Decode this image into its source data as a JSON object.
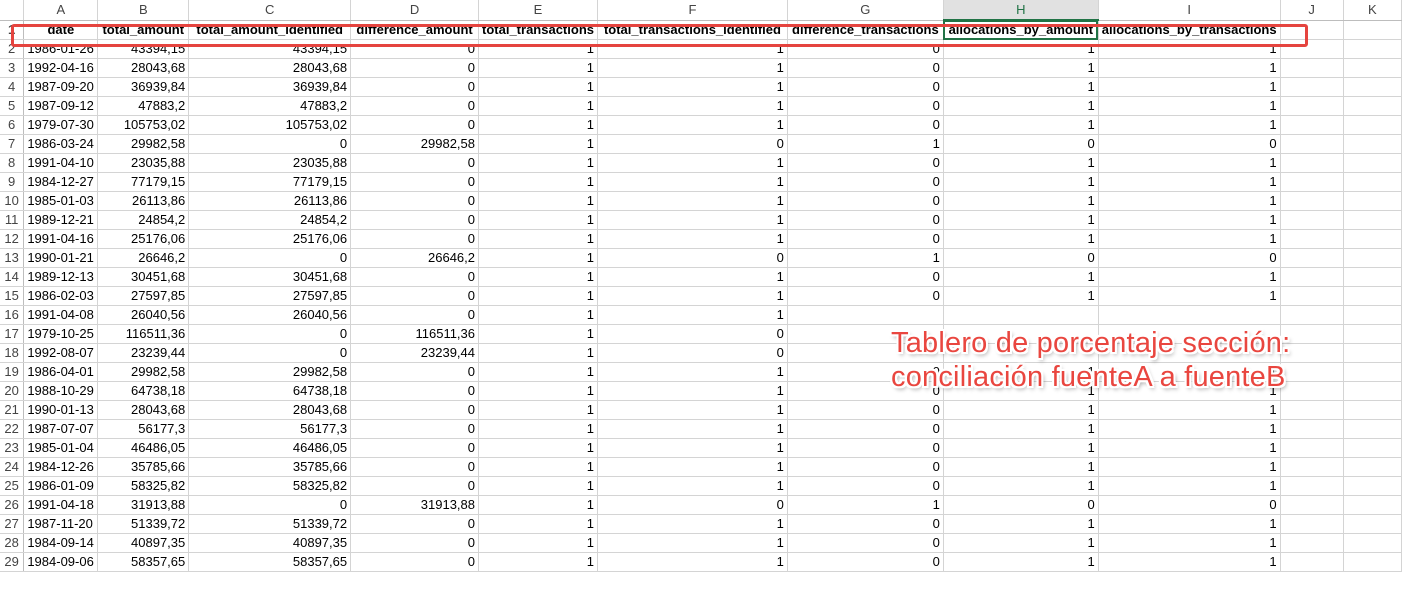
{
  "columns": [
    "A",
    "B",
    "C",
    "D",
    "E",
    "F",
    "G",
    "H",
    "I",
    "J",
    "K"
  ],
  "selected_column": "H",
  "header_row": {
    "row_number": "1",
    "cells": [
      "date",
      "total_amount",
      "total_amount_identified",
      "difference_amount",
      "total_transactions",
      "total_transactions_identified",
      "difference_transactions",
      "allocations_by_amount",
      "allocations_by_transactions"
    ]
  },
  "rows": [
    {
      "n": "2",
      "c": [
        "1986-01-26",
        "43394,15",
        "43394,15",
        "0",
        "1",
        "1",
        "0",
        "1",
        "1"
      ]
    },
    {
      "n": "3",
      "c": [
        "1992-04-16",
        "28043,68",
        "28043,68",
        "0",
        "1",
        "1",
        "0",
        "1",
        "1"
      ]
    },
    {
      "n": "4",
      "c": [
        "1987-09-20",
        "36939,84",
        "36939,84",
        "0",
        "1",
        "1",
        "0",
        "1",
        "1"
      ]
    },
    {
      "n": "5",
      "c": [
        "1987-09-12",
        "47883,2",
        "47883,2",
        "0",
        "1",
        "1",
        "0",
        "1",
        "1"
      ]
    },
    {
      "n": "6",
      "c": [
        "1979-07-30",
        "105753,02",
        "105753,02",
        "0",
        "1",
        "1",
        "0",
        "1",
        "1"
      ]
    },
    {
      "n": "7",
      "c": [
        "1986-03-24",
        "29982,58",
        "0",
        "29982,58",
        "1",
        "0",
        "1",
        "0",
        "0"
      ]
    },
    {
      "n": "8",
      "c": [
        "1991-04-10",
        "23035,88",
        "23035,88",
        "0",
        "1",
        "1",
        "0",
        "1",
        "1"
      ]
    },
    {
      "n": "9",
      "c": [
        "1984-12-27",
        "77179,15",
        "77179,15",
        "0",
        "1",
        "1",
        "0",
        "1",
        "1"
      ]
    },
    {
      "n": "10",
      "c": [
        "1985-01-03",
        "26113,86",
        "26113,86",
        "0",
        "1",
        "1",
        "0",
        "1",
        "1"
      ]
    },
    {
      "n": "11",
      "c": [
        "1989-12-21",
        "24854,2",
        "24854,2",
        "0",
        "1",
        "1",
        "0",
        "1",
        "1"
      ]
    },
    {
      "n": "12",
      "c": [
        "1991-04-16",
        "25176,06",
        "25176,06",
        "0",
        "1",
        "1",
        "0",
        "1",
        "1"
      ]
    },
    {
      "n": "13",
      "c": [
        "1990-01-21",
        "26646,2",
        "0",
        "26646,2",
        "1",
        "0",
        "1",
        "0",
        "0"
      ]
    },
    {
      "n": "14",
      "c": [
        "1989-12-13",
        "30451,68",
        "30451,68",
        "0",
        "1",
        "1",
        "0",
        "1",
        "1"
      ]
    },
    {
      "n": "15",
      "c": [
        "1986-02-03",
        "27597,85",
        "27597,85",
        "0",
        "1",
        "1",
        "0",
        "1",
        "1"
      ]
    },
    {
      "n": "16",
      "c": [
        "1991-04-08",
        "26040,56",
        "26040,56",
        "0",
        "1",
        "1",
        "",
        "",
        ""
      ]
    },
    {
      "n": "17",
      "c": [
        "1979-10-25",
        "116511,36",
        "0",
        "116511,36",
        "1",
        "0",
        "",
        "",
        ""
      ]
    },
    {
      "n": "18",
      "c": [
        "1992-08-07",
        "23239,44",
        "0",
        "23239,44",
        "1",
        "0",
        "",
        "",
        ""
      ]
    },
    {
      "n": "19",
      "c": [
        "1986-04-01",
        "29982,58",
        "29982,58",
        "0",
        "1",
        "1",
        "0",
        "1",
        "1"
      ]
    },
    {
      "n": "20",
      "c": [
        "1988-10-29",
        "64738,18",
        "64738,18",
        "0",
        "1",
        "1",
        "0",
        "1",
        "1"
      ]
    },
    {
      "n": "21",
      "c": [
        "1990-01-13",
        "28043,68",
        "28043,68",
        "0",
        "1",
        "1",
        "0",
        "1",
        "1"
      ]
    },
    {
      "n": "22",
      "c": [
        "1987-07-07",
        "56177,3",
        "56177,3",
        "0",
        "1",
        "1",
        "0",
        "1",
        "1"
      ]
    },
    {
      "n": "23",
      "c": [
        "1985-01-04",
        "46486,05",
        "46486,05",
        "0",
        "1",
        "1",
        "0",
        "1",
        "1"
      ]
    },
    {
      "n": "24",
      "c": [
        "1984-12-26",
        "35785,66",
        "35785,66",
        "0",
        "1",
        "1",
        "0",
        "1",
        "1"
      ]
    },
    {
      "n": "25",
      "c": [
        "1986-01-09",
        "58325,82",
        "58325,82",
        "0",
        "1",
        "1",
        "0",
        "1",
        "1"
      ]
    },
    {
      "n": "26",
      "c": [
        "1991-04-18",
        "31913,88",
        "0",
        "31913,88",
        "1",
        "0",
        "1",
        "0",
        "0"
      ]
    },
    {
      "n": "27",
      "c": [
        "1987-11-20",
        "51339,72",
        "51339,72",
        "0",
        "1",
        "1",
        "0",
        "1",
        "1"
      ]
    },
    {
      "n": "28",
      "c": [
        "1984-09-14",
        "40897,35",
        "40897,35",
        "0",
        "1",
        "1",
        "0",
        "1",
        "1"
      ]
    },
    {
      "n": "29",
      "c": [
        "1984-09-06",
        "58357,65",
        "58357,65",
        "0",
        "1",
        "1",
        "0",
        "1",
        "1"
      ]
    }
  ],
  "annotation": {
    "line1": "Tablero de porcentaje sección:",
    "line2": "conciliación fuenteA a fuenteB",
    "text_color": "#e9463f",
    "box_color": "#e5443f"
  },
  "colors": {
    "selection": "#217346",
    "gridline": "#d4d4d4"
  }
}
